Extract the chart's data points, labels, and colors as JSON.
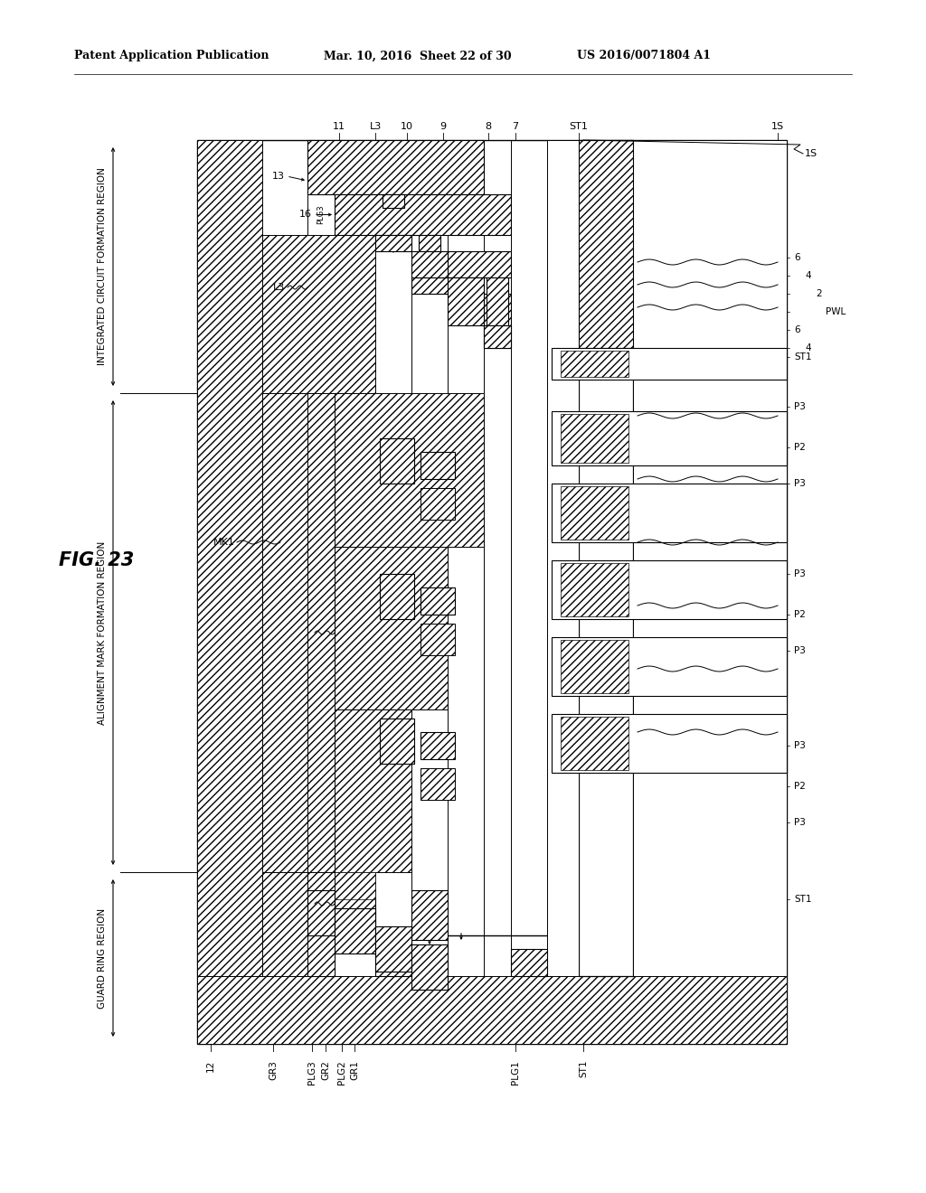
{
  "title_left": "Patent Application Publication",
  "title_mid": "Mar. 10, 2016  Sheet 22 of 30",
  "title_right": "US 2016/0071804 A1",
  "bg_color": "#ffffff",
  "lc": "#000000"
}
